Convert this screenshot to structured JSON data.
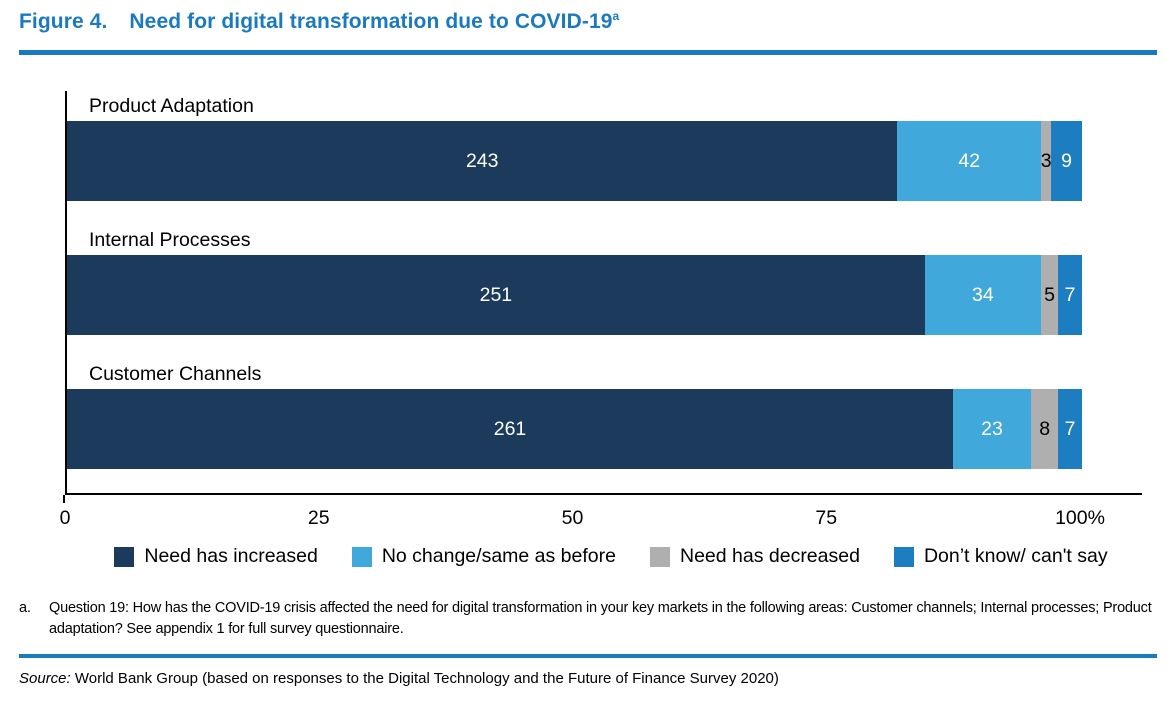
{
  "figure": {
    "label": "Figure 4.",
    "title": "Need for digital transformation due to COVID-19",
    "footnote_marker": "a"
  },
  "chart_data": {
    "type": "bar",
    "orientation": "horizontal",
    "stacked": true,
    "stack_mode": "percent_of_total",
    "categories": [
      "Product Adaptation",
      "Internal Processes",
      "Customer Channels"
    ],
    "series": [
      {
        "name": "Need has increased",
        "color": "#1B3A5C",
        "label_color": "#FFFFFF",
        "values": [
          243,
          251,
          261
        ]
      },
      {
        "name": "No change/same as before",
        "color": "#41A8DB",
        "label_color": "#FFFFFF",
        "values": [
          42,
          34,
          23
        ]
      },
      {
        "name": "Need has decreased",
        "color": "#AFAFB0",
        "label_color": "#000000",
        "values": [
          3,
          5,
          8
        ]
      },
      {
        "name": "Don’t know/ can't say",
        "color": "#1C7EC0",
        "label_color": "#FFFFFF",
        "values": [
          9,
          7,
          7
        ]
      }
    ],
    "x_axis": {
      "ticks": [
        0,
        25,
        50,
        75,
        100
      ],
      "tick_labels": [
        "0",
        "25",
        "50",
        "75",
        "100%"
      ],
      "min": 0,
      "max": 100
    },
    "grid": false,
    "legend_position": "bottom"
  },
  "footnote": {
    "marker": "a.",
    "text": "Question 19: How has the COVID-19 crisis affected the need for digital transformation in your key markets in the following areas: Customer channels; Internal processes; Product adaptation? See appendix 1 for full survey questionnaire."
  },
  "source": {
    "prefix": "Source:",
    "text": " World Bank Group (based on responses to the Digital Technology and the Future of Finance Survey 2020)"
  },
  "accent_color": "#1B7ABF"
}
